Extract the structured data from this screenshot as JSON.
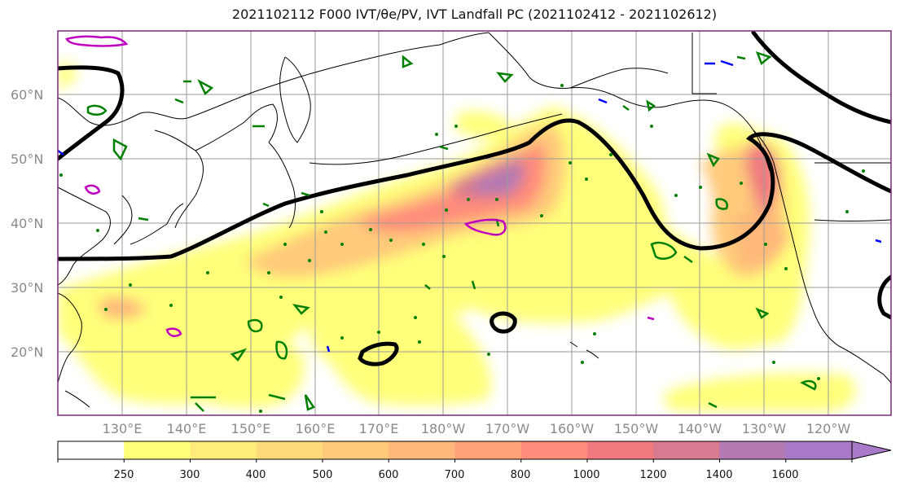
{
  "title": "2021102112 F000 IVT/θe/PV, IVT Landfall PC (2021102412 - 2021102612)",
  "map": {
    "lat_labels": [
      "60°N",
      "50°N",
      "40°N",
      "30°N",
      "20°N"
    ],
    "lon_labels": [
      "130°E",
      "140°E",
      "150°E",
      "160°E",
      "170°E",
      "180°W",
      "170°W",
      "160°W",
      "150°W",
      "140°W",
      "130°W",
      "120°W"
    ],
    "extent": {
      "lon_min": 120,
      "lon_max": 250,
      "lat_min": 10,
      "lat_max": 70
    }
  },
  "colorbar": {
    "levels": [
      "250",
      "300",
      "400",
      "500",
      "600",
      "700",
      "800",
      "1000",
      "1200",
      "1400",
      "1600"
    ],
    "colors": [
      "#ffffff",
      "#ffff7a",
      "#ffec7a",
      "#ffdb7a",
      "#ffca7a",
      "#ffb87a",
      "#ffa27a",
      "#ff8c7a",
      "#f07a80",
      "#d87a90",
      "#b47ab4",
      "#a87ac8"
    ]
  },
  "colors": {
    "contour_black": "#000000",
    "pv_green": "#008000",
    "magenta": "#c000c0",
    "blue": "#0000ff"
  }
}
